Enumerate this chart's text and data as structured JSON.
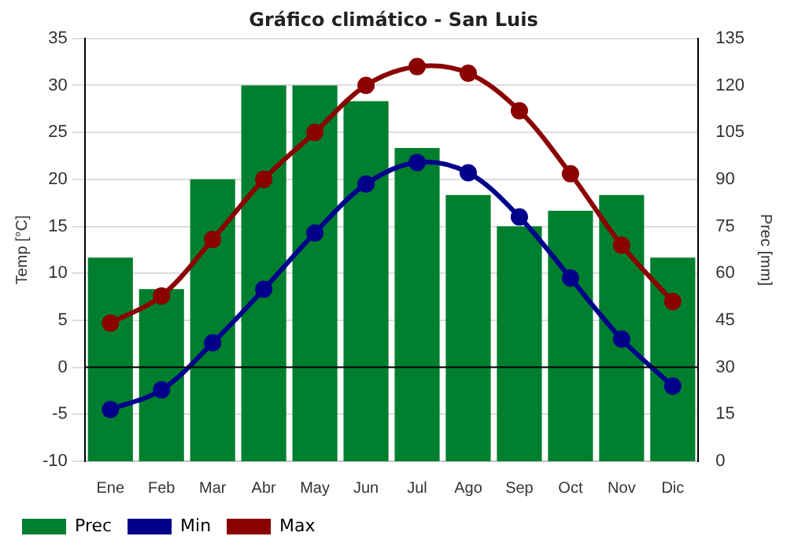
{
  "chart_data": {
    "type": "bar",
    "title": "Gráfico climático - San Luis",
    "ylabel": "Temp [°C]",
    "y2label": "Prec [mm]",
    "categories": [
      "Ene",
      "Feb",
      "Mar",
      "Abr",
      "May",
      "Jun",
      "Jul",
      "Ago",
      "Sep",
      "Oct",
      "Nov",
      "Dic"
    ],
    "series": [
      {
        "name": "Prec",
        "axis": "y2",
        "color": "#007f2e",
        "values": [
          65,
          55,
          90,
          120,
          120,
          115,
          100,
          85,
          75,
          80,
          85,
          65
        ]
      },
      {
        "name": "Min",
        "type": "line",
        "color": "#00008b",
        "values": [
          -4.5,
          -2.4,
          2.6,
          8.3,
          14.3,
          19.5,
          21.8,
          20.7,
          16,
          9.5,
          3,
          -2
        ]
      },
      {
        "name": "Max",
        "type": "line",
        "color": "#8b0000",
        "values": [
          4.7,
          7.6,
          13.6,
          20,
          25,
          30,
          32,
          31.3,
          27.3,
          20.6,
          13,
          7
        ]
      }
    ],
    "ylim": [
      -10,
      35
    ],
    "yticks": [
      -10,
      -5,
      0,
      5,
      10,
      15,
      20,
      25,
      30,
      35
    ],
    "y2lim": [
      0,
      135
    ],
    "y2ticks": [
      0,
      15,
      30,
      45,
      60,
      75,
      90,
      105,
      120,
      135
    ],
    "ref_lines": [
      {
        "axis": "y",
        "value": 0,
        "color": "#000000"
      }
    ],
    "grid": "y",
    "legend": "bottom left",
    "marker": "circle",
    "line_style": "solid"
  }
}
